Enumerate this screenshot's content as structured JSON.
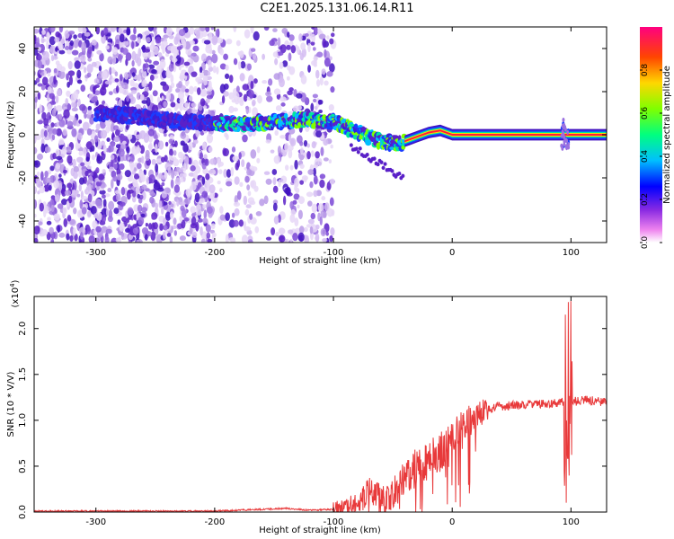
{
  "title": "C2E1.2025.131.06.14.R11",
  "chart_data": [
    {
      "type": "heatmap",
      "xlabel": "Height of straight line (km)",
      "ylabel": "Frequency (Hz)",
      "xlim": [
        -352,
        130
      ],
      "ylim": [
        -50,
        50
      ],
      "xticks": [
        -300,
        -200,
        -100,
        0,
        100
      ],
      "yticks": [
        -40,
        -20,
        0,
        20,
        40
      ],
      "colorbar": {
        "label": "Normalized spectral amplitude",
        "range": [
          0,
          1
        ],
        "ticks": [
          "0.0",
          "0.2",
          "0.4",
          "0.6",
          "0.8"
        ],
        "colors": [
          "#ffffff",
          "#ee82ee",
          "#8a2be2",
          "#0000ff",
          "#00bfff",
          "#00ff7f",
          "#7fff00",
          "#ffd700",
          "#ff4500",
          "#ff0080"
        ]
      },
      "ridge": {
        "description_x": [
          -290,
          -230,
          -180,
          -150,
          -120,
          -100,
          -80,
          -60,
          -45,
          -30,
          -20,
          -10,
          0,
          50,
          95,
          130
        ],
        "frequency_hz": [
          10,
          6,
          5,
          6,
          7,
          6,
          1,
          -3,
          -4,
          -1,
          1,
          2,
          0,
          0,
          0,
          0
        ]
      }
    },
    {
      "type": "line",
      "xlabel": "Height of straight line (km)",
      "ylabel": "SNR (10 * V/V)",
      "y_multiplier": "(x10",
      "y_multiplier_exp": "4",
      "xlim": [
        -352,
        130
      ],
      "ylim": [
        0,
        2.35
      ],
      "xticks": [
        -300,
        -200,
        -100,
        0,
        100
      ],
      "yticks": [
        "0.0",
        "0.5",
        "1.0",
        "1.5",
        "2.0"
      ],
      "line_color": "#e8393a",
      "series": [
        {
          "x": [
            -352,
            -300,
            -250,
            -200,
            -160,
            -140,
            -120,
            -100,
            -90,
            -80,
            -70,
            -60,
            -55,
            -50,
            -40,
            -30,
            -20,
            -10,
            0,
            10,
            20,
            30,
            40,
            60,
            80,
            95,
            100,
            110,
            130
          ],
          "values": [
            0.01,
            0.01,
            0.01,
            0.01,
            0.03,
            0.04,
            0.02,
            0.03,
            0.05,
            0.1,
            0.25,
            0.15,
            0.1,
            0.2,
            0.35,
            0.5,
            0.55,
            0.65,
            0.8,
            0.95,
            1.05,
            1.12,
            1.15,
            1.17,
            1.18,
            1.2,
            1.2,
            1.22,
            1.2
          ]
        }
      ]
    }
  ]
}
